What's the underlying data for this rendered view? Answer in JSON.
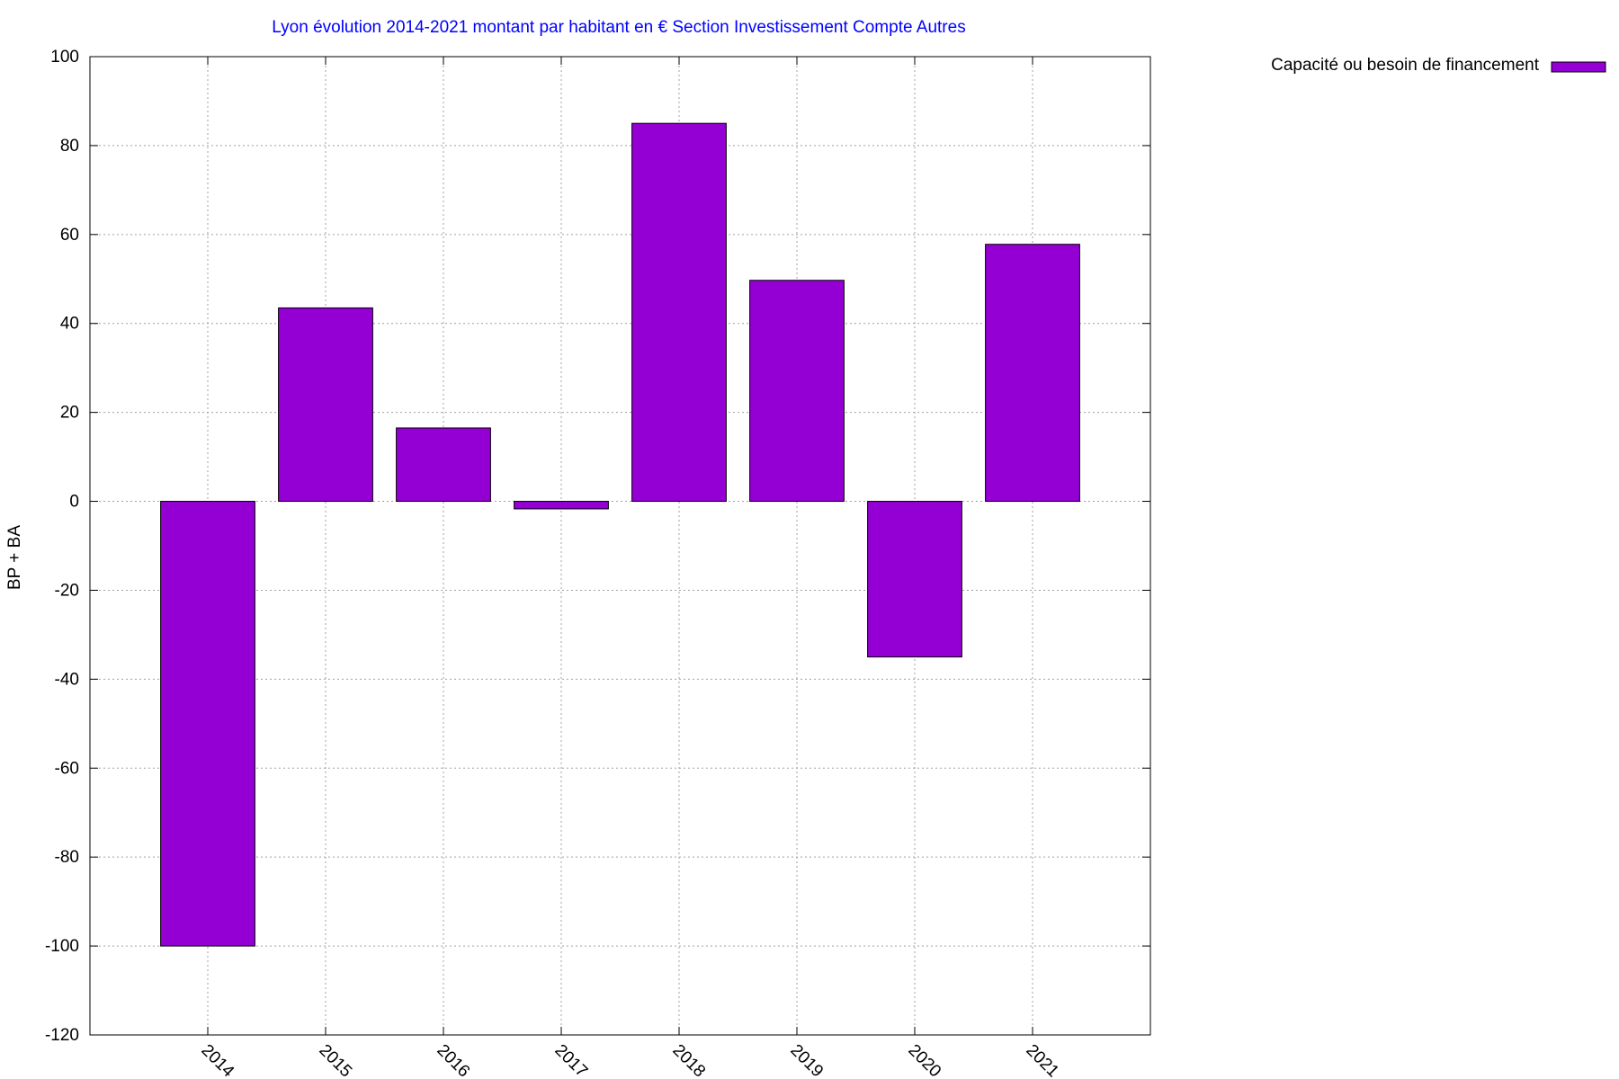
{
  "chart_data": {
    "type": "bar",
    "title": "Lyon évolution 2014-2021 montant par habitant en € Section Investissement Compte Autres",
    "xlabel": "",
    "ylabel": "BP + BA",
    "categories": [
      "2014",
      "2015",
      "2016",
      "2017",
      "2018",
      "2019",
      "2020",
      "2021"
    ],
    "series": [
      {
        "name": "Capacité ou besoin de financement",
        "values": [
          -100,
          43.5,
          16.5,
          -1.7,
          85,
          49.7,
          -35,
          57.8
        ]
      }
    ],
    "ylim": [
      -120,
      100
    ],
    "yticks": [
      100,
      80,
      60,
      40,
      20,
      0,
      -20,
      -40,
      -60,
      -80,
      -100,
      -120
    ],
    "grid": true,
    "legend_position": "top-right, outside plot",
    "colors": {
      "bar": "#9400d3",
      "title": "#0000ff",
      "grid": "#a0a0a0"
    }
  }
}
